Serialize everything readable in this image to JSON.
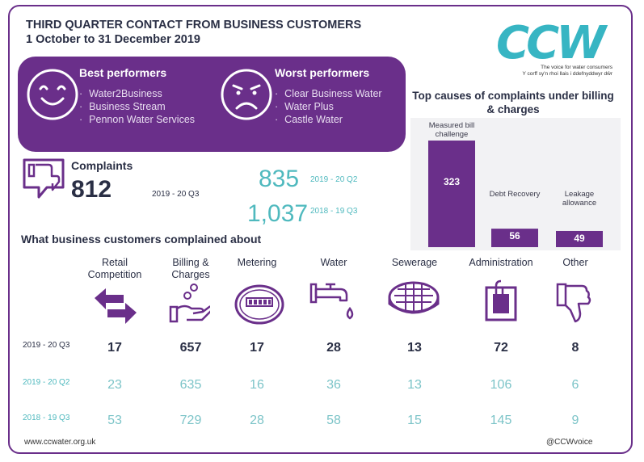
{
  "header": {
    "title_line1": "THIRD QUARTER CONTACT FROM BUSINESS CUSTOMERS",
    "title_line2": "1 October to 31 December 2019"
  },
  "logo": {
    "text": "CCW",
    "tagline_en": "The voice for water consumers",
    "tagline_cy": "Y corff sy'n rhoi llais i ddefnyddwyr dŵr",
    "color": "#37b5c3"
  },
  "best": {
    "title": "Best performers",
    "items": [
      "Water2Business",
      "Business Stream",
      "Pennon Water Services"
    ]
  },
  "worst": {
    "title": "Worst performers",
    "items": [
      "Clear Business Water",
      "Water Plus",
      "Castle Water"
    ]
  },
  "complaints": {
    "title": "Complaints",
    "current_value": "812",
    "current_period": "2019 - 20 Q3",
    "prev1_value": "835",
    "prev1_period": "2019 - 20 Q2",
    "prev2_value": "1,037",
    "prev2_period": "2018 - 19 Q3"
  },
  "chart_data": {
    "type": "bar",
    "title": "Top causes of complaints under billing & charges",
    "categories": [
      "Measured bill challenge",
      "Debt Recovery",
      "Leakage allowance"
    ],
    "values": [
      323,
      56,
      49
    ],
    "color": "#6a2f8a"
  },
  "breakdown": {
    "title": "What business customers complained about",
    "categories": [
      {
        "label1": "Retail",
        "label2": "Competition",
        "icon": "arrows-icon"
      },
      {
        "label1": "Billing &",
        "label2": "Charges",
        "icon": "hand-coins-icon"
      },
      {
        "label1": "Metering",
        "label2": "",
        "icon": "meter-icon"
      },
      {
        "label1": "Water",
        "label2": "",
        "icon": "tap-icon"
      },
      {
        "label1": "Sewerage",
        "label2": "",
        "icon": "drain-cover-icon"
      },
      {
        "label1": "Administration",
        "label2": "",
        "icon": "clipboard-icon"
      },
      {
        "label1": "Other",
        "label2": "",
        "icon": "thumbs-down-icon"
      }
    ],
    "rows": [
      {
        "period": "2019 - 20 Q3",
        "values": [
          "17",
          "657",
          "17",
          "28",
          "13",
          "72",
          "8"
        ]
      },
      {
        "period": "2019 - 20 Q2",
        "values": [
          "23",
          "635",
          "16",
          "36",
          "13",
          "106",
          "6"
        ]
      },
      {
        "period": "2018 - 19 Q3",
        "values": [
          "53",
          "729",
          "28",
          "58",
          "15",
          "145",
          "9"
        ]
      }
    ]
  },
  "footer": {
    "website": "www.ccwater.org.uk",
    "social": "@CCWvoice"
  },
  "colors": {
    "purple": "#6a2f8a",
    "teal": "#4fb9be",
    "navy": "#2a2f45"
  }
}
